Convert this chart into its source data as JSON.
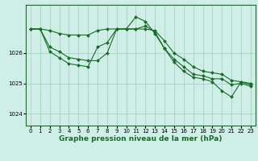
{
  "bg_color": "#ceeee6",
  "grid_color": "#aed8ce",
  "line_color": "#1a6b2a",
  "marker_color": "#1a6b2a",
  "xlabel": "Graphe pression niveau de la mer (hPa)",
  "xlabel_fontsize": 6.5,
  "tick_fontsize": 5.0,
  "xlim": [
    -0.5,
    23.5
  ],
  "ylim": [
    1023.6,
    1027.6
  ],
  "yticks": [
    1024,
    1025,
    1026
  ],
  "xticks": [
    0,
    1,
    2,
    3,
    4,
    5,
    6,
    7,
    8,
    9,
    10,
    11,
    12,
    13,
    14,
    15,
    16,
    17,
    18,
    19,
    20,
    21,
    22,
    23
  ],
  "series": [
    [
      1026.8,
      1026.8,
      1026.75,
      1026.65,
      1026.6,
      1026.6,
      1026.6,
      1026.75,
      1026.8,
      1026.8,
      1026.8,
      1026.8,
      1026.8,
      1026.75,
      1026.4,
      1026.0,
      1025.8,
      1025.55,
      1025.4,
      1025.35,
      1025.3,
      1025.1,
      1025.05,
      1025.0
    ],
    [
      1026.8,
      1026.8,
      1026.2,
      1026.05,
      1025.85,
      1025.8,
      1025.75,
      1025.75,
      1026.0,
      1026.8,
      1026.8,
      1026.8,
      1026.9,
      1026.7,
      1026.15,
      1025.8,
      1025.55,
      1025.3,
      1025.25,
      1025.15,
      1025.15,
      1024.95,
      1025.0,
      1024.9
    ],
    [
      1026.8,
      1026.8,
      1026.05,
      1025.85,
      1025.65,
      1025.6,
      1025.55,
      1026.2,
      1026.35,
      1026.8,
      1026.8,
      1027.2,
      1027.05,
      1026.65,
      1026.15,
      1025.7,
      1025.4,
      1025.2,
      1025.15,
      1025.05,
      1024.75,
      1024.55,
      1025.05,
      1024.95
    ]
  ]
}
